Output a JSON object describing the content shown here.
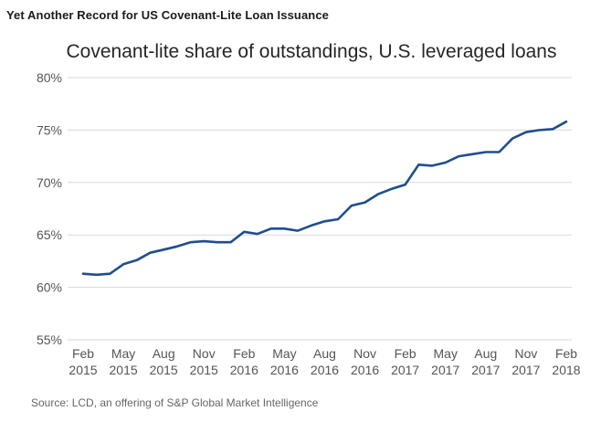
{
  "headline": "Yet Another Record for US Covenant-Lite Loan Issuance",
  "source": "Source: LCD, an offering of S&P Global Market Intelligence",
  "chart_data": {
    "type": "line",
    "title": "Covenant-lite share of outstandings, U.S. leveraged loans",
    "xlabel": "",
    "ylabel": "",
    "ylim": [
      55,
      80
    ],
    "y_ticks": [
      55,
      60,
      65,
      70,
      75,
      80
    ],
    "y_tick_labels": [
      "55%",
      "60%",
      "65%",
      "70%",
      "75%",
      "80%"
    ],
    "x_ticks": [
      "Feb 2015",
      "May 2015",
      "Aug 2015",
      "Nov 2015",
      "Feb 2016",
      "May 2016",
      "Aug 2016",
      "Nov 2016",
      "Feb 2017",
      "May 2017",
      "Aug 2017",
      "Nov 2017",
      "Feb 2018"
    ],
    "x_tick_lines": [
      [
        "Feb",
        "2015"
      ],
      [
        "May",
        "2015"
      ],
      [
        "Aug",
        "2015"
      ],
      [
        "Nov",
        "2015"
      ],
      [
        "Feb",
        "2016"
      ],
      [
        "May",
        "2016"
      ],
      [
        "Aug",
        "2016"
      ],
      [
        "Nov",
        "2016"
      ],
      [
        "Feb",
        "2017"
      ],
      [
        "May",
        "2017"
      ],
      [
        "Aug",
        "2017"
      ],
      [
        "Nov",
        "2017"
      ],
      [
        "Feb",
        "2018"
      ]
    ],
    "grid": "horizontal",
    "line_color": "#1f4e8c",
    "series": [
      {
        "x": [
          "2015-02",
          "2015-03",
          "2015-04",
          "2015-05",
          "2015-06",
          "2015-07",
          "2015-08",
          "2015-09",
          "2015-10",
          "2015-11",
          "2015-12",
          "2016-01",
          "2016-02",
          "2016-03",
          "2016-04",
          "2016-05",
          "2016-06",
          "2016-07",
          "2016-08",
          "2016-09",
          "2016-10",
          "2016-11",
          "2016-12",
          "2017-01",
          "2017-02",
          "2017-03",
          "2017-04",
          "2017-05",
          "2017-06",
          "2017-07",
          "2017-08",
          "2017-09",
          "2017-10",
          "2017-11",
          "2017-12",
          "2018-01",
          "2018-02"
        ],
        "values": [
          61.3,
          61.2,
          61.3,
          62.2,
          62.6,
          63.3,
          63.6,
          63.9,
          64.3,
          64.4,
          64.3,
          64.3,
          65.3,
          65.1,
          65.6,
          65.6,
          65.4,
          65.9,
          66.3,
          66.5,
          67.8,
          68.1,
          68.9,
          69.4,
          69.8,
          71.7,
          71.6,
          71.9,
          72.5,
          72.7,
          72.9,
          72.9,
          74.2,
          74.8,
          75.0,
          75.1,
          75.8
        ]
      }
    ]
  }
}
